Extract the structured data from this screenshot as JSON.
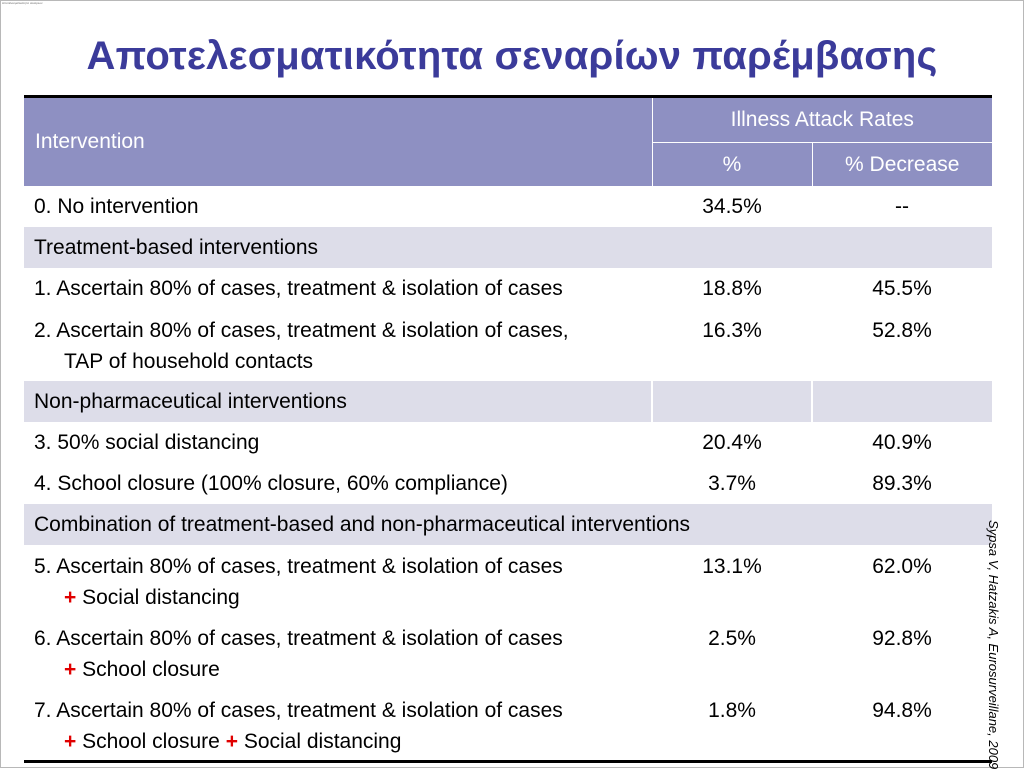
{
  "slide": {
    "thumbnail_text": "Αποτελεσματικότητα σεναρίων",
    "title": "Αποτελεσματικότητα σεναρίων παρέμβασης",
    "citation": "Sypsa V, Hatzakis A, Eurosurveillane, 2009"
  },
  "table": {
    "header": {
      "intervention": "Intervention",
      "illness_attack_rates": "Illness Attack Rates",
      "percent": "%",
      "percent_decrease": "% Decrease"
    },
    "plus_sign": "+",
    "rows": [
      {
        "label": "0.  No intervention",
        "rate": "34.5%",
        "decrease": "--"
      },
      {
        "section": "Treatment-based interventions"
      },
      {
        "label": "1.  Ascertain 80% of cases, treatment & isolation of cases",
        "rate": "18.8%",
        "decrease": "45.5%"
      },
      {
        "label": "2.  Ascertain 80% of cases, treatment & isolation of cases,",
        "label_cont": "TAP of household contacts",
        "rate": "16.3%",
        "decrease": "52.8%"
      },
      {
        "section": "Non-pharmaceutical interventions"
      },
      {
        "label": "3.  50% social distancing",
        "rate": "20.4%",
        "decrease": "40.9%"
      },
      {
        "label": "4.  School closure (100% closure, 60% compliance)",
        "rate": "3.7%",
        "decrease": "89.3%"
      },
      {
        "section": "Combination of treatment-based and non-pharmaceutical interventions"
      },
      {
        "label": "5.  Ascertain 80% of cases, treatment & isolation of cases",
        "label_cont": "Social distancing",
        "rate": "13.1%",
        "decrease": "62.0%"
      },
      {
        "label": "6.  Ascertain 80% of cases, treatment & isolation of cases",
        "label_cont": "School closure",
        "rate": "2.5%",
        "decrease": "92.8%"
      },
      {
        "label": "7.  Ascertain 80% of cases, treatment & isolation of cases",
        "label_cont_a": "School closure",
        "label_cont_b": "Social distancing",
        "rate": "1.8%",
        "decrease": "94.8%"
      }
    ]
  },
  "colors": {
    "title": "#3b3b9a",
    "header_bg": "#8e90c2",
    "section_bg": "#dddde9",
    "plus": "#e00000"
  }
}
